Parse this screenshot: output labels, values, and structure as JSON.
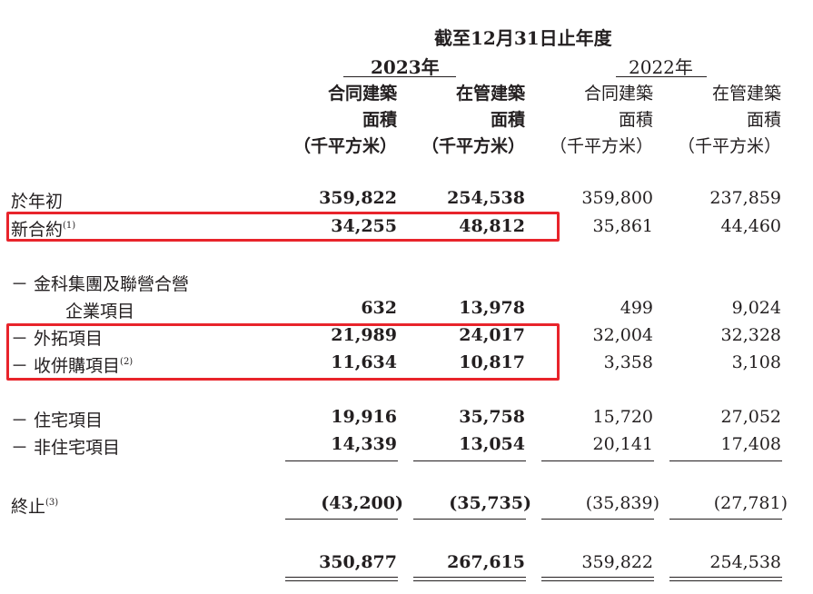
{
  "header": {
    "period": "截至12月31日止年度",
    "year_2023": "2023年",
    "year_2022": "2022年"
  },
  "columns": [
    {
      "line1": "合同建築",
      "line2": "面積",
      "unit": "（千平方米）"
    },
    {
      "line1": "在管建築",
      "line2": "面積",
      "unit": "（千平方米）"
    },
    {
      "line1": "合同建築",
      "line2": "面積",
      "unit": "（千平方米）"
    },
    {
      "line1": "在管建築",
      "line2": "面積",
      "unit": "（千平方米）"
    }
  ],
  "rows": [
    {
      "label": "於年初",
      "values": [
        "359,822",
        "254,538",
        "359,800",
        "237,859"
      ]
    },
    {
      "label": "新合約",
      "note": "(1)",
      "values": [
        "34,255",
        "48,812",
        "35,861",
        "44,460"
      ]
    },
    {
      "label": "－ 金科集團及聯營合營",
      "label_cont": "企業項目",
      "values": [
        "632",
        "13,978",
        "499",
        "9,024"
      ]
    },
    {
      "label": "－ 外拓項目",
      "values": [
        "21,989",
        "24,017",
        "32,004",
        "32,328"
      ]
    },
    {
      "label": "－ 收併購項目",
      "note": "(2)",
      "values": [
        "11,634",
        "10,817",
        "3,358",
        "3,108"
      ]
    },
    {
      "label": "－ 住宅項目",
      "values": [
        "19,916",
        "35,758",
        "15,720",
        "27,052"
      ]
    },
    {
      "label": "－ 非住宅項目",
      "values": [
        "14,339",
        "13,054",
        "20,141",
        "17,408"
      ]
    },
    {
      "label": "終止",
      "note": "(3)",
      "values": [
        "(43,200)",
        "(35,735)",
        "(35,839)",
        "(27,781)"
      ]
    },
    {
      "label": "",
      "values": [
        "350,877",
        "267,615",
        "359,822",
        "254,538"
      ]
    }
  ],
  "highlight_color": "#e8242b"
}
